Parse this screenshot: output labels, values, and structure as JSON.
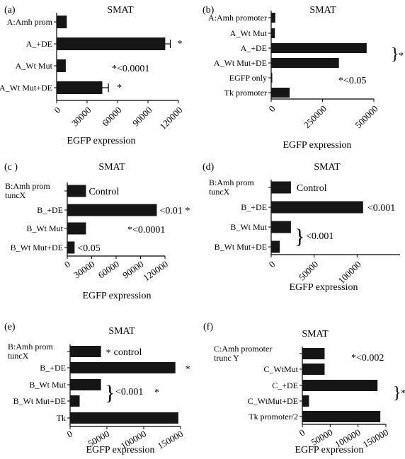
{
  "chart_data": [
    {
      "type": "bar",
      "orientation": "horizontal",
      "panel": "(a)",
      "title": "SMAT",
      "xlabel": "EGFP expression",
      "categories": [
        "A:Amh prom",
        "A_+DE",
        "A_Wt Mut",
        "A_Wt Mut+DE"
      ],
      "values": [
        10000,
        107000,
        9000,
        45000
      ],
      "errors": [
        0,
        5000,
        0,
        6000
      ],
      "xlim": [
        0,
        120000
      ],
      "xticks": [
        "0",
        "30000",
        "60000",
        "90000",
        "120000"
      ],
      "annotations": [
        {
          "text": "*",
          "bar": 1
        },
        {
          "text": "*",
          "bar": 3
        },
        {
          "text": "*<0.0001"
        }
      ]
    },
    {
      "type": "bar",
      "orientation": "horizontal",
      "panel": "(b)",
      "title": "SMAT",
      "xlabel": "EGFP expression",
      "categories": [
        "A:Amh promoter",
        "A_Wt Mut",
        "A_+DE",
        "A_Wt Mut+DE",
        "EGFP only",
        "Tk promoter"
      ],
      "values": [
        20000,
        18000,
        465000,
        330000,
        4000,
        90000
      ],
      "xlim": [
        0,
        500000
      ],
      "xticks": [
        "0",
        "250000",
        "500000"
      ],
      "annotations": [
        {
          "text": "*<0.05"
        },
        {
          "text": "}"
        },
        {
          "text": "*"
        }
      ]
    },
    {
      "type": "bar",
      "orientation": "horizontal",
      "panel": "(c )",
      "title": "SMAT",
      "xlabel": "EGFP expression",
      "categories": [
        "B:Amh prom tuncX",
        "B_+DE",
        "B_Wt Mut",
        "B_Wt Mut+DE"
      ],
      "category_lines": [
        [
          "B:Amh prom",
          "tuncX"
        ],
        [
          "B_+DE"
        ],
        [
          "B_Wt Mut"
        ],
        [
          "B_Wt Mut+DE"
        ]
      ],
      "values": [
        23000,
        110000,
        23000,
        9000
      ],
      "xlim": [
        0,
        120000
      ],
      "xticks": [
        "0",
        "30000",
        "60000",
        "90000",
        "120000"
      ],
      "annotations": [
        {
          "text": "Control",
          "bar": 0
        },
        {
          "text": "<0.01 *",
          "bar": 1
        },
        {
          "text": "*<0.0001"
        },
        {
          "text": "<0.05",
          "bar": 3
        }
      ]
    },
    {
      "type": "bar",
      "orientation": "horizontal",
      "panel": "(d)",
      "title": "SMAT",
      "xlabel": "EGFP expression",
      "categories": [
        "B:Amh prom tuncX",
        "B_+DE",
        "B_Wt Mut",
        "B_Wt Mut+DE"
      ],
      "category_lines": [
        [
          "B:Amh prom",
          "tuncX"
        ],
        [
          "B_+DE"
        ],
        [
          "B_Wt Mut"
        ],
        [
          "B_Wt Mut+DE"
        ]
      ],
      "values": [
        23000,
        107000,
        23000,
        10000
      ],
      "xlim": [
        0,
        150000
      ],
      "xticks": [
        "0",
        "50000",
        "100000"
      ],
      "annotations": [
        {
          "text": "Control",
          "bar": 0
        },
        {
          "text": "<0.001",
          "bar": 1
        },
        {
          "text": "}"
        },
        {
          "text": "<0.001"
        }
      ]
    },
    {
      "type": "bar",
      "orientation": "horizontal",
      "panel": "(e)",
      "title": "SMAT",
      "xlabel": "EGFP expression",
      "categories": [
        "B:Amh prom tuncX",
        "B_+DE",
        "B_Wt Mut",
        "B_Wt Mut+DE",
        "Tk"
      ],
      "category_lines": [
        [
          "B:Amh prom",
          "tuncX"
        ],
        [
          "B_+DE"
        ],
        [
          "B_Wt Mut"
        ],
        [
          "B_Wt Mut+DE"
        ],
        [
          "Tk"
        ]
      ],
      "values": [
        42000,
        143000,
        42000,
        13000,
        147000
      ],
      "xlim": [
        0,
        150000
      ],
      "xticks": [
        "0",
        "50000",
        "100000",
        "150000"
      ],
      "annotations": [
        {
          "text": "*",
          "bar": 0
        },
        {
          "text": "control",
          "bar": 0
        },
        {
          "text": "*",
          "bar": 1
        },
        {
          "text": "}"
        },
        {
          "text": "<0.001"
        },
        {
          "text": "*"
        }
      ]
    },
    {
      "type": "bar",
      "orientation": "horizontal",
      "panel": "(f)",
      "title": "SMAT",
      "xlabel": "EGFP expression",
      "categories": [
        "C:Amh promoter trunc Y",
        "C_WtMut",
        "C_+DE",
        "C_WtMut+DE",
        "Tk promoter/2"
      ],
      "category_lines": [
        [
          "C:Amh promoter",
          "trunc Y"
        ],
        [
          "C_WtMut"
        ],
        [
          "C_+DE"
        ],
        [
          "C_WtMut+DE"
        ],
        [
          "Tk promoter/2"
        ]
      ],
      "values": [
        40000,
        40000,
        135000,
        12000,
        140000
      ],
      "xlim": [
        0,
        150000
      ],
      "xticks": [
        "0",
        "50000",
        "100000",
        "150000"
      ],
      "annotations": [
        {
          "text": "*<0.002"
        },
        {
          "text": "}"
        },
        {
          "text": "*"
        }
      ]
    }
  ]
}
